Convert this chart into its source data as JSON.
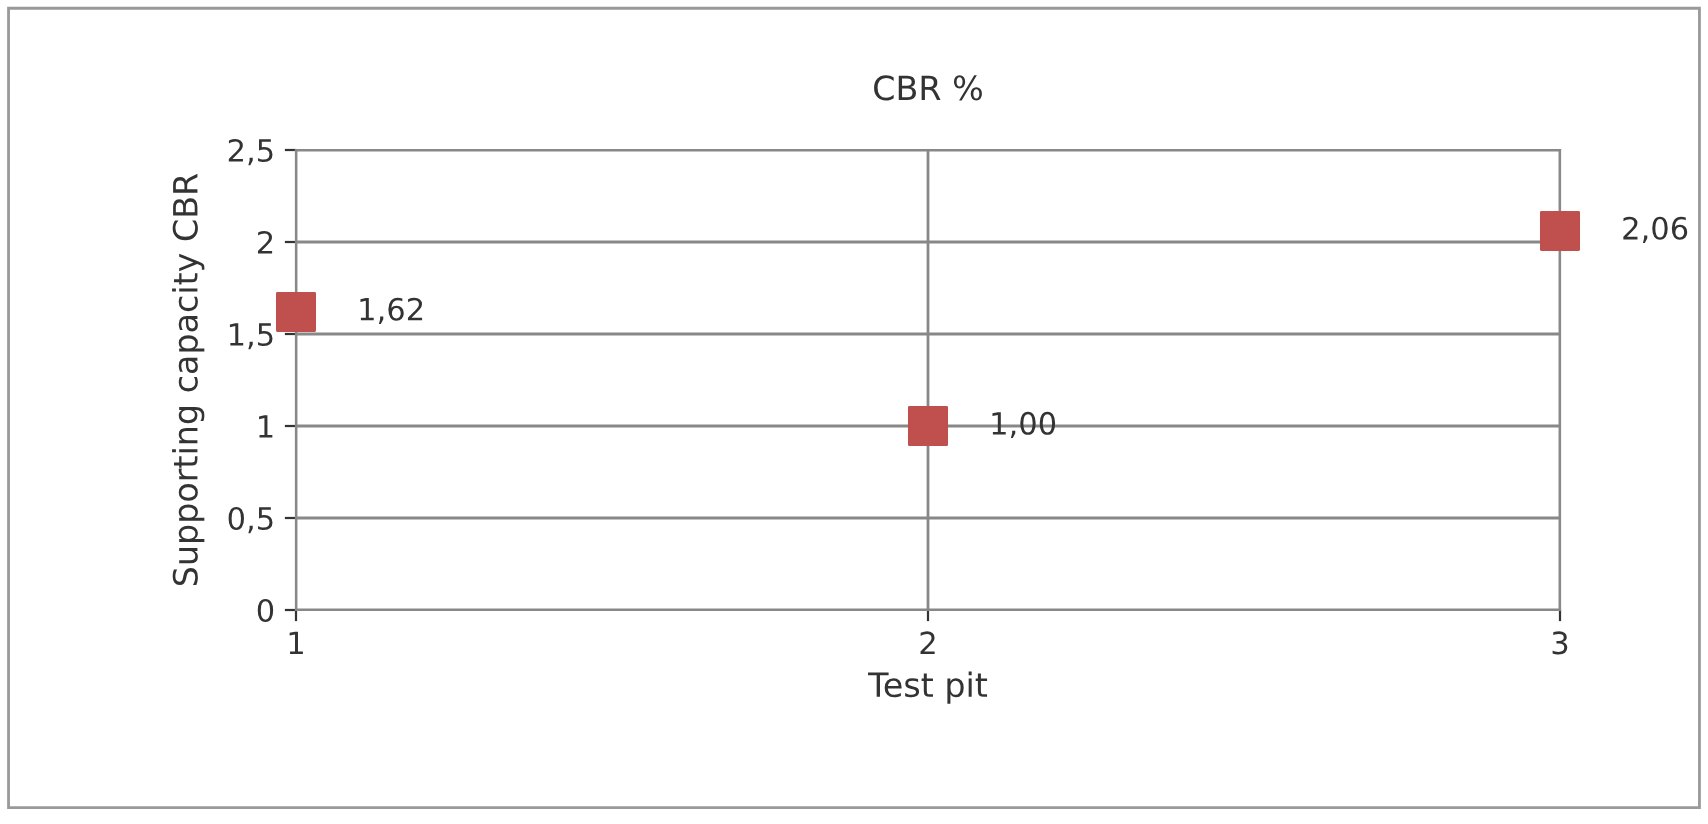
{
  "chart_data": {
    "type": "scatter",
    "title": "CBR %",
    "xlabel": "Test pit",
    "ylabel": "Supporting capacity CBR",
    "x": [
      1,
      2,
      3
    ],
    "series": [
      {
        "color": "#c0504d",
        "values": [
          1.62,
          1.0,
          2.06
        ],
        "value_labels": [
          "1,62",
          "1,00",
          "2,06"
        ]
      }
    ],
    "marker": "square",
    "xlim": [
      1,
      3
    ],
    "xticks": [
      1,
      2,
      3
    ],
    "ylim": [
      0,
      2.5
    ],
    "yticks": [
      0,
      {
        "value": 0.5,
        "label": "0,5"
      },
      1,
      {
        "value": 1.5,
        "label": "1,5"
      },
      2,
      {
        "value": 2.5,
        "label": "2,5"
      }
    ],
    "grid": true
  }
}
